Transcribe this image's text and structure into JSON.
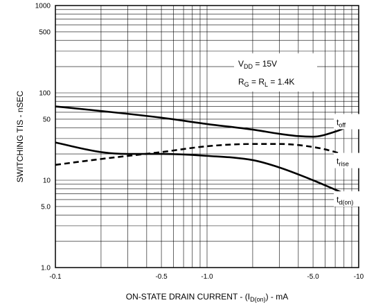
{
  "chart_data": {
    "type": "line",
    "xscale": "log",
    "yscale": "log",
    "xlim": [
      -0.1,
      -10
    ],
    "ylim": [
      1.0,
      1000
    ],
    "x_ticks": [
      {
        "value": -0.1,
        "label": "-0.1"
      },
      {
        "value": -0.5,
        "label": "-0.5"
      },
      {
        "value": -1.0,
        "label": "-1.0"
      },
      {
        "value": -5.0,
        "label": "-5.0"
      },
      {
        "value": -10,
        "label": "-10"
      }
    ],
    "y_ticks": [
      {
        "value": 1.0,
        "label": "1.0"
      },
      {
        "value": 5.0,
        "label": "5.0"
      },
      {
        "value": 10,
        "label": "10"
      },
      {
        "value": 50,
        "label": "50"
      },
      {
        "value": 100,
        "label": "100"
      },
      {
        "value": 500,
        "label": "500"
      },
      {
        "value": 1000,
        "label": "1000"
      }
    ],
    "ylabel": "SWITCHING TIS - nSEC",
    "xlabel": {
      "main": "ON-STATE DRAIN CURRENT - (I",
      "sub": "D(on)",
      "tail": ") - mA"
    },
    "grid": true,
    "conditions": {
      "vdd": {
        "main": "V",
        "sub": "DD",
        "tail": " = 15V"
      },
      "rg_rl": {
        "main1": "R",
        "sub1": "G",
        "mid": " = R",
        "sub2": "L",
        "tail": " = 1.4K"
      }
    },
    "series": [
      {
        "key": "toff",
        "label_main": "t",
        "label_sub": "off",
        "style": "solid",
        "x": [
          -0.1,
          -0.2,
          -0.5,
          -1.0,
          -2.0,
          -3.0,
          -4.0,
          -5.0,
          -7.0,
          -10
        ],
        "y": [
          70,
          62,
          52,
          44,
          38,
          34,
          32,
          31.5,
          36,
          46
        ]
      },
      {
        "key": "trise",
        "label_main": "t",
        "label_sub": "rise",
        "style": "dashed",
        "x": [
          -0.1,
          -0.2,
          -0.5,
          -1.0,
          -2.0,
          -3.0,
          -5.0,
          -7.0,
          -10
        ],
        "y": [
          15,
          17.5,
          21,
          24.5,
          26,
          26,
          24,
          21,
          16.5
        ]
      },
      {
        "key": "tdon",
        "label_main": "t",
        "label_sub": "d(on)",
        "style": "solid",
        "x": [
          -0.1,
          -0.2,
          -0.3,
          -0.5,
          -1.0,
          -2.0,
          -3.0,
          -5.0,
          -7.0,
          -10
        ],
        "y": [
          27,
          21,
          20,
          20,
          19,
          17,
          14,
          10,
          7.8,
          6
        ]
      }
    ]
  }
}
